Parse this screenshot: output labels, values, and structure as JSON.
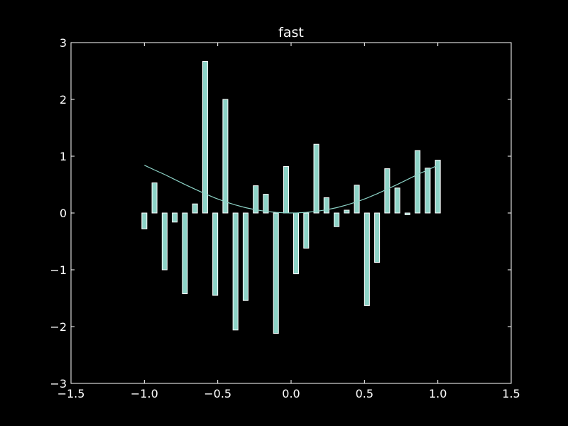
{
  "chart_data": {
    "type": "bar",
    "title": "fast",
    "xlabel": "",
    "ylabel": "",
    "xlim": [
      -1.5,
      1.5
    ],
    "ylim": [
      -3,
      3
    ],
    "xticks": [
      -1.5,
      -1.0,
      -0.5,
      0.0,
      0.5,
      1.0,
      1.5
    ],
    "yticks": [
      -3,
      -2,
      -1,
      0,
      1,
      2,
      3
    ],
    "xtick_labels": [
      "−1.5",
      "−1.0",
      "−0.5",
      "0.0",
      "0.5",
      "1.0",
      "1.5"
    ],
    "ytick_labels": [
      "−3",
      "−2",
      "−1",
      "0",
      "1",
      "2",
      "3"
    ],
    "grid": false,
    "colors": {
      "background": "#000000",
      "axes": "#ffffff",
      "bar_fill": "#8dd3c7",
      "bar_edge": "#ffffff",
      "line": "#8dd3c7"
    },
    "bars": {
      "x": [
        -1.0,
        -0.931,
        -0.862,
        -0.793,
        -0.724,
        -0.655,
        -0.586,
        -0.517,
        -0.448,
        -0.379,
        -0.31,
        -0.241,
        -0.172,
        -0.103,
        -0.034,
        0.034,
        0.103,
        0.172,
        0.241,
        0.31,
        0.379,
        0.448,
        0.517,
        0.586,
        0.655,
        0.724,
        0.793,
        0.862,
        0.931,
        1.0
      ],
      "values": [
        -0.28,
        0.53,
        -1.0,
        -0.16,
        -1.42,
        0.16,
        2.67,
        -1.45,
        2.0,
        -2.06,
        -1.54,
        0.48,
        0.33,
        -2.12,
        0.82,
        -1.07,
        -0.62,
        1.21,
        0.27,
        -0.24,
        0.05,
        0.49,
        -1.63,
        -0.87,
        0.78,
        0.44,
        -0.03,
        1.1,
        0.79,
        0.93
      ],
      "width": 0.034
    },
    "series": [
      {
        "type": "line",
        "x": [
          -1.0,
          -0.931,
          -0.862,
          -0.793,
          -0.724,
          -0.655,
          -0.586,
          -0.517,
          -0.448,
          -0.379,
          -0.31,
          -0.241,
          -0.172,
          -0.103,
          -0.034,
          0.034,
          0.103,
          0.172,
          0.241,
          0.31,
          0.379,
          0.448,
          0.517,
          0.586,
          0.655,
          0.724,
          0.793,
          0.862,
          0.931,
          1.0
        ],
        "values": [
          0.841,
          0.758,
          0.678,
          0.59,
          0.502,
          0.419,
          0.338,
          0.263,
          0.197,
          0.141,
          0.094,
          0.057,
          0.029,
          0.011,
          0.001,
          0.001,
          0.011,
          0.029,
          0.057,
          0.094,
          0.141,
          0.197,
          0.263,
          0.338,
          0.419,
          0.502,
          0.59,
          0.678,
          0.758,
          0.841
        ]
      }
    ]
  }
}
